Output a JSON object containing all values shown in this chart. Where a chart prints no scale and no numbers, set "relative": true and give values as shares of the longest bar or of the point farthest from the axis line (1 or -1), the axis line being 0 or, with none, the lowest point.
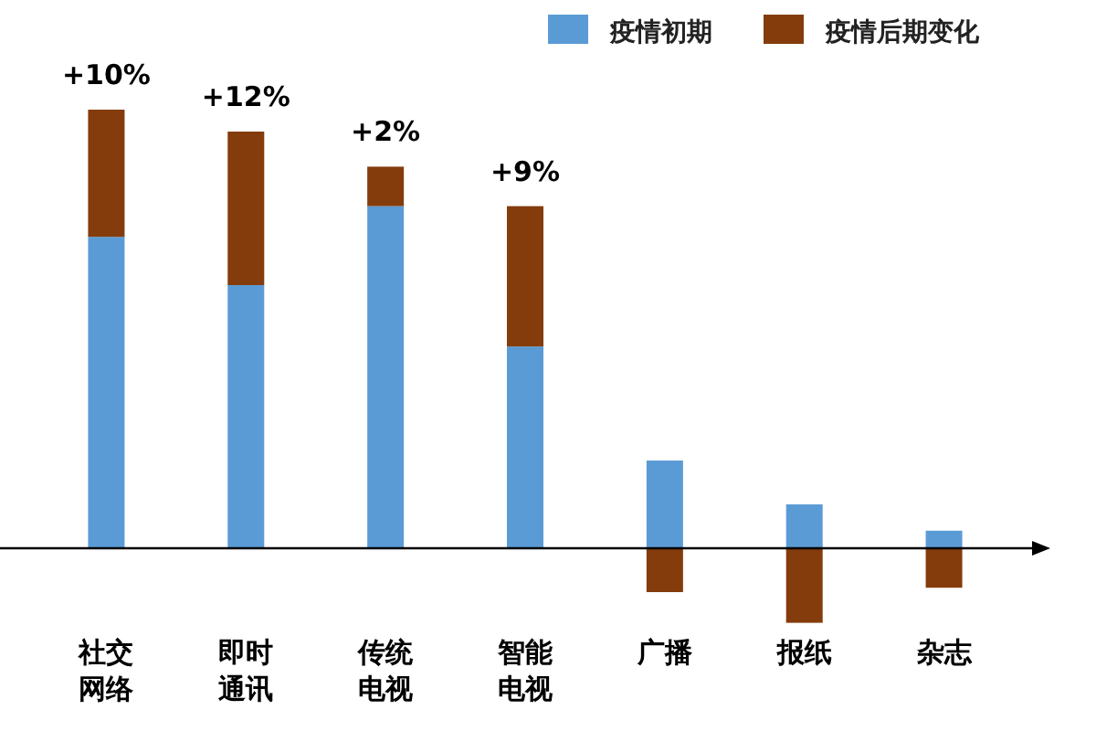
{
  "chart_data": {
    "type": "bar",
    "stacked": true,
    "relative": true,
    "legend": "top right",
    "categories": [
      "社交网络",
      "即时通讯",
      "传统电视",
      "智能电视",
      "广播",
      "报纸",
      "杂志"
    ],
    "series": [
      {
        "name": "疫情初期",
        "color": "#5b9bd5",
        "values": [
          0.71,
          0.6,
          0.78,
          0.46,
          0.2,
          0.1,
          0.04
        ]
      },
      {
        "name": "疫情后期变化",
        "color": "#843c0c",
        "values": [
          0.29,
          0.35,
          0.09,
          0.32,
          -0.1,
          -0.17,
          -0.09
        ]
      }
    ],
    "annotations": [
      {
        "text": "+10%",
        "x": "社交网络",
        "y": 1.0
      },
      {
        "text": "+12%",
        "x": "即时通讯",
        "y": 0.95
      },
      {
        "text": "+2%",
        "x": "传统电视",
        "y": 0.87
      },
      {
        "text": "+9%",
        "x": "智能电视",
        "y": 0.78
      }
    ]
  }
}
